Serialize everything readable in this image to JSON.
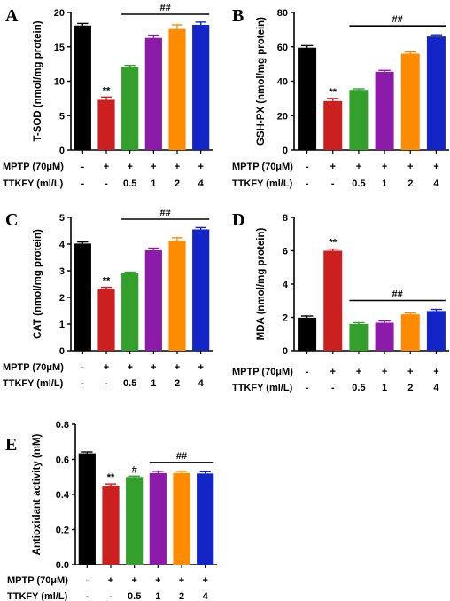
{
  "colors": [
    "#000000",
    "#cc1f1f",
    "#33a02c",
    "#8b1ba8",
    "#ff8c00",
    "#1425c8"
  ],
  "condition_rows": [
    {
      "label": "MPTP (70μM)",
      "values": [
        "-",
        "+",
        "+",
        "+",
        "+",
        "+"
      ]
    },
    {
      "label": "TTKFY (ml/L)",
      "values": [
        "-",
        "-",
        "0.5",
        "1",
        "2",
        "4"
      ]
    }
  ],
  "chart_data": [
    {
      "panel": "A",
      "type": "bar",
      "ylabel": "T-SOD (nmol/mg protein)",
      "ylim": [
        0,
        20
      ],
      "yticks": [
        "0",
        "5",
        "10",
        "15",
        "20"
      ],
      "values": [
        18.1,
        7.3,
        12.1,
        16.3,
        17.6,
        18.2
      ],
      "errors": [
        0.3,
        0.4,
        0.2,
        0.4,
        0.6,
        0.4
      ],
      "markers": [
        {
          "index": 1,
          "text": "**"
        }
      ],
      "bracket": {
        "from": 2,
        "to": 5,
        "text": "##"
      }
    },
    {
      "panel": "B",
      "type": "bar",
      "ylabel": "GSH-PX (nmol/mg protein)",
      "ylim": [
        0,
        80
      ],
      "yticks": [
        "0",
        "20",
        "40",
        "60",
        "80"
      ],
      "values": [
        59.5,
        28.5,
        35,
        45.5,
        56,
        66
      ],
      "errors": [
        1.2,
        1.5,
        0.6,
        0.8,
        1.0,
        1.0
      ],
      "markers": [
        {
          "index": 1,
          "text": "**"
        }
      ],
      "bracket": {
        "from": 2,
        "to": 5,
        "text": "##"
      }
    },
    {
      "panel": "C",
      "type": "bar",
      "ylabel": "CAT (nmol/mg protein)",
      "ylim": [
        0,
        5
      ],
      "yticks": [
        "0",
        "1",
        "2",
        "3",
        "4",
        "5"
      ],
      "values": [
        4.02,
        2.33,
        2.92,
        3.77,
        4.12,
        4.55
      ],
      "errors": [
        0.06,
        0.05,
        0.03,
        0.08,
        0.12,
        0.07
      ],
      "markers": [
        {
          "index": 1,
          "text": "**"
        }
      ],
      "bracket": {
        "from": 2,
        "to": 5,
        "text": "##"
      }
    },
    {
      "panel": "D",
      "type": "bar",
      "ylabel": "MDA (nmol/mg protein)",
      "ylim": [
        0,
        8
      ],
      "yticks": [
        "0",
        "2",
        "4",
        "6",
        "8"
      ],
      "values": [
        1.98,
        6.0,
        1.6,
        1.68,
        2.18,
        2.38
      ],
      "errors": [
        0.1,
        0.1,
        0.08,
        0.1,
        0.08,
        0.1
      ],
      "markers": [
        {
          "index": 1,
          "text": "**"
        }
      ],
      "bracket": {
        "from": 2,
        "to": 5,
        "text": "##"
      }
    },
    {
      "panel": "E",
      "type": "bar",
      "ylabel": "Antioxidant activity (mM)",
      "ylim": [
        0,
        0.8
      ],
      "yticks": [
        "0.0",
        "0.2",
        "0.4",
        "0.6",
        "0.8"
      ],
      "values": [
        0.635,
        0.45,
        0.5,
        0.522,
        0.522,
        0.52
      ],
      "errors": [
        0.008,
        0.01,
        0.005,
        0.01,
        0.01,
        0.01
      ],
      "markers": [
        {
          "index": 1,
          "text": "**"
        },
        {
          "index": 2,
          "text": "#"
        }
      ],
      "bracket": {
        "from": 3,
        "to": 5,
        "text": "##"
      }
    }
  ]
}
